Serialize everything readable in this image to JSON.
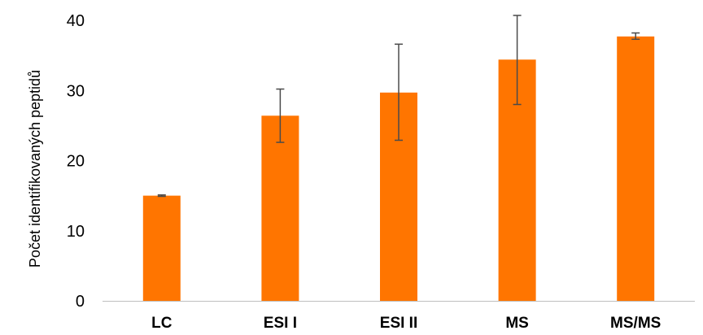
{
  "chart_data": {
    "type": "bar",
    "title": "",
    "xlabel": "",
    "ylabel": "Počet identifikovaných peptidů",
    "categories": [
      "LC",
      "ESI I",
      "ESI II",
      "MS",
      "MS/MS"
    ],
    "values": [
      15.0,
      26.4,
      29.7,
      34.4,
      37.7
    ],
    "error_low": [
      14.9,
      22.6,
      22.9,
      28.0,
      37.3
    ],
    "error_high": [
      15.1,
      30.2,
      36.6,
      40.7,
      38.2
    ],
    "ylim": [
      0,
      40
    ],
    "yticks": [
      "0",
      "10",
      "20",
      "30",
      "40"
    ],
    "grid": false,
    "legend": "none",
    "bar_color": "#FF7500",
    "error_bar_color": "#4a4a4a"
  }
}
